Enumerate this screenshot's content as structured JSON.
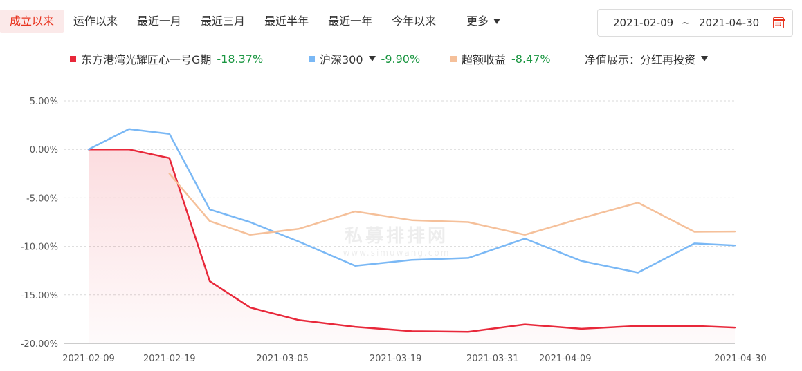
{
  "tabs": [
    {
      "label": "成立以来",
      "active": true
    },
    {
      "label": "运作以来"
    },
    {
      "label": "最近一月"
    },
    {
      "label": "最近三月"
    },
    {
      "label": "最近半年"
    },
    {
      "label": "最近一年"
    },
    {
      "label": "今年以来"
    }
  ],
  "more_label": "更多",
  "date_range": {
    "start": "2021-02-09",
    "separator": "~",
    "end": "2021-04-30"
  },
  "legend": {
    "fund": {
      "name": "东方港湾光耀匠心一号G期",
      "value": "-18.37%",
      "color": "#e8283a"
    },
    "index": {
      "name": "沪深300",
      "value": "-9.90%",
      "color": "#7ab8f5"
    },
    "excess": {
      "name": "超额收益",
      "value": "-8.47%",
      "color": "#f5c09a"
    },
    "display_mode": {
      "label": "净值展示：",
      "value": "分红再投资"
    }
  },
  "watermark": {
    "cn": "私募排排网",
    "en": "www.simuwang.com"
  },
  "chart_data": {
    "type": "line",
    "x": [
      "2021-02-09",
      "2021-02-14",
      "2021-02-19",
      "2021-02-24",
      "2021-03-01",
      "2021-03-07",
      "2021-03-14",
      "2021-03-21",
      "2021-03-28",
      "2021-04-04",
      "2021-04-11",
      "2021-04-18",
      "2021-04-25",
      "2021-04-30"
    ],
    "x_ticks": [
      "2021-02-09",
      "2021-02-19",
      "2021-03-05",
      "2021-03-19",
      "2021-03-31",
      "2021-04-09",
      "2021-04-30"
    ],
    "y_ticks": [
      "5.00%",
      "0.00%",
      "-5.00%",
      "-10.00%",
      "-15.00%",
      "-20.00%"
    ],
    "ylim": [
      -20,
      5
    ],
    "grid": true,
    "series": [
      {
        "name": "东方港湾光耀匠心一号G期",
        "color": "#e8283a",
        "area": true,
        "values": [
          0.0,
          0.0,
          -0.9,
          -13.6,
          -16.3,
          -17.6,
          -18.3,
          -18.75,
          -18.8,
          -18.05,
          -18.5,
          -18.2,
          -18.2,
          -18.37
        ]
      },
      {
        "name": "沪深300",
        "color": "#7ab8f5",
        "values": [
          0.0,
          2.1,
          1.6,
          -6.2,
          -7.5,
          -9.5,
          -12.0,
          -11.4,
          -11.2,
          -9.2,
          -11.5,
          -12.7,
          -9.7,
          -9.9
        ]
      },
      {
        "name": "超额收益",
        "color": "#f5c09a",
        "values": [
          null,
          null,
          -2.5,
          -7.4,
          -8.8,
          -8.2,
          -6.4,
          -7.3,
          -7.5,
          -8.8,
          -7.1,
          -5.5,
          -8.5,
          -8.47
        ]
      }
    ]
  }
}
